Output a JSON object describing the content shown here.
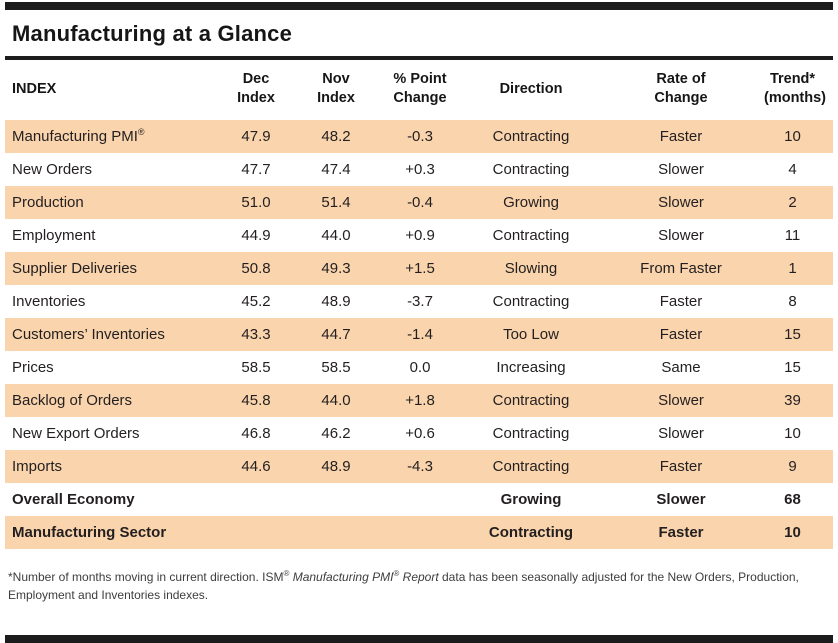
{
  "title": "Manufacturing at a Glance",
  "colors": {
    "row_shade": "#FAD4AC",
    "bar": "#1C1C1C",
    "text": "#231F20"
  },
  "table": {
    "headers": [
      "INDEX",
      "Dec\nIndex",
      "Nov\nIndex",
      "% Point\nChange",
      "Direction",
      "Rate of\nChange",
      "Trend*\n(months)"
    ],
    "rows": [
      {
        "index": "Manufacturing PMI",
        "index_sup": "®",
        "dec": "47.9",
        "nov": "48.2",
        "change": "-0.3",
        "direction": "Contracting",
        "rate": "Faster",
        "trend": "10",
        "shaded": true,
        "bold": false
      },
      {
        "index": "New Orders",
        "dec": "47.7",
        "nov": "47.4",
        "change": "+0.3",
        "direction": "Contracting",
        "rate": "Slower",
        "trend": "4",
        "shaded": false,
        "bold": false
      },
      {
        "index": "Production",
        "dec": "51.0",
        "nov": "51.4",
        "change": "-0.4",
        "direction": "Growing",
        "rate": "Slower",
        "trend": "2",
        "shaded": true,
        "bold": false
      },
      {
        "index": "Employment",
        "dec": "44.9",
        "nov": "44.0",
        "change": "+0.9",
        "direction": "Contracting",
        "rate": "Slower",
        "trend": "11",
        "shaded": false,
        "bold": false
      },
      {
        "index": "Supplier Deliveries",
        "dec": "50.8",
        "nov": "49.3",
        "change": "+1.5",
        "direction": "Slowing",
        "rate": "From Faster",
        "trend": "1",
        "shaded": true,
        "bold": false
      },
      {
        "index": "Inventories",
        "dec": "45.2",
        "nov": "48.9",
        "change": "-3.7",
        "direction": "Contracting",
        "rate": "Faster",
        "trend": "8",
        "shaded": false,
        "bold": false
      },
      {
        "index": "Customers’ Inventories",
        "dec": "43.3",
        "nov": "44.7",
        "change": "-1.4",
        "direction": "Too Low",
        "rate": "Faster",
        "trend": "15",
        "shaded": true,
        "bold": false
      },
      {
        "index": "Prices",
        "dec": "58.5",
        "nov": "58.5",
        "change": "0.0",
        "direction": "Increasing",
        "rate": "Same",
        "trend": "15",
        "shaded": false,
        "bold": false
      },
      {
        "index": "Backlog of Orders",
        "dec": "45.8",
        "nov": "44.0",
        "change": "+1.8",
        "direction": "Contracting",
        "rate": "Slower",
        "trend": "39",
        "shaded": true,
        "bold": false
      },
      {
        "index": "New Export Orders",
        "dec": "46.8",
        "nov": "46.2",
        "change": "+0.6",
        "direction": "Contracting",
        "rate": "Slower",
        "trend": "10",
        "shaded": false,
        "bold": false
      },
      {
        "index": "Imports",
        "dec": "44.6",
        "nov": "48.9",
        "change": "-4.3",
        "direction": "Contracting",
        "rate": "Faster",
        "trend": "9",
        "shaded": true,
        "bold": false
      },
      {
        "index": "Overall Economy",
        "dec": "",
        "nov": "",
        "change": "",
        "direction": "Growing",
        "rate": "Slower",
        "trend": "68",
        "shaded": false,
        "bold": true
      },
      {
        "index": "Manufacturing Sector",
        "dec": "",
        "nov": "",
        "change": "",
        "direction": "Contracting",
        "rate": "Faster",
        "trend": "10",
        "shaded": true,
        "bold": true
      }
    ]
  },
  "footnote": {
    "seg1": "*Number of months moving in current direction. ISM",
    "reg": "®",
    "seg2": " Manufacturing PMI",
    "seg3": " Report",
    "seg4": " data has been seasonally adjusted for the New Orders, Production, Employment and Inventories indexes."
  }
}
